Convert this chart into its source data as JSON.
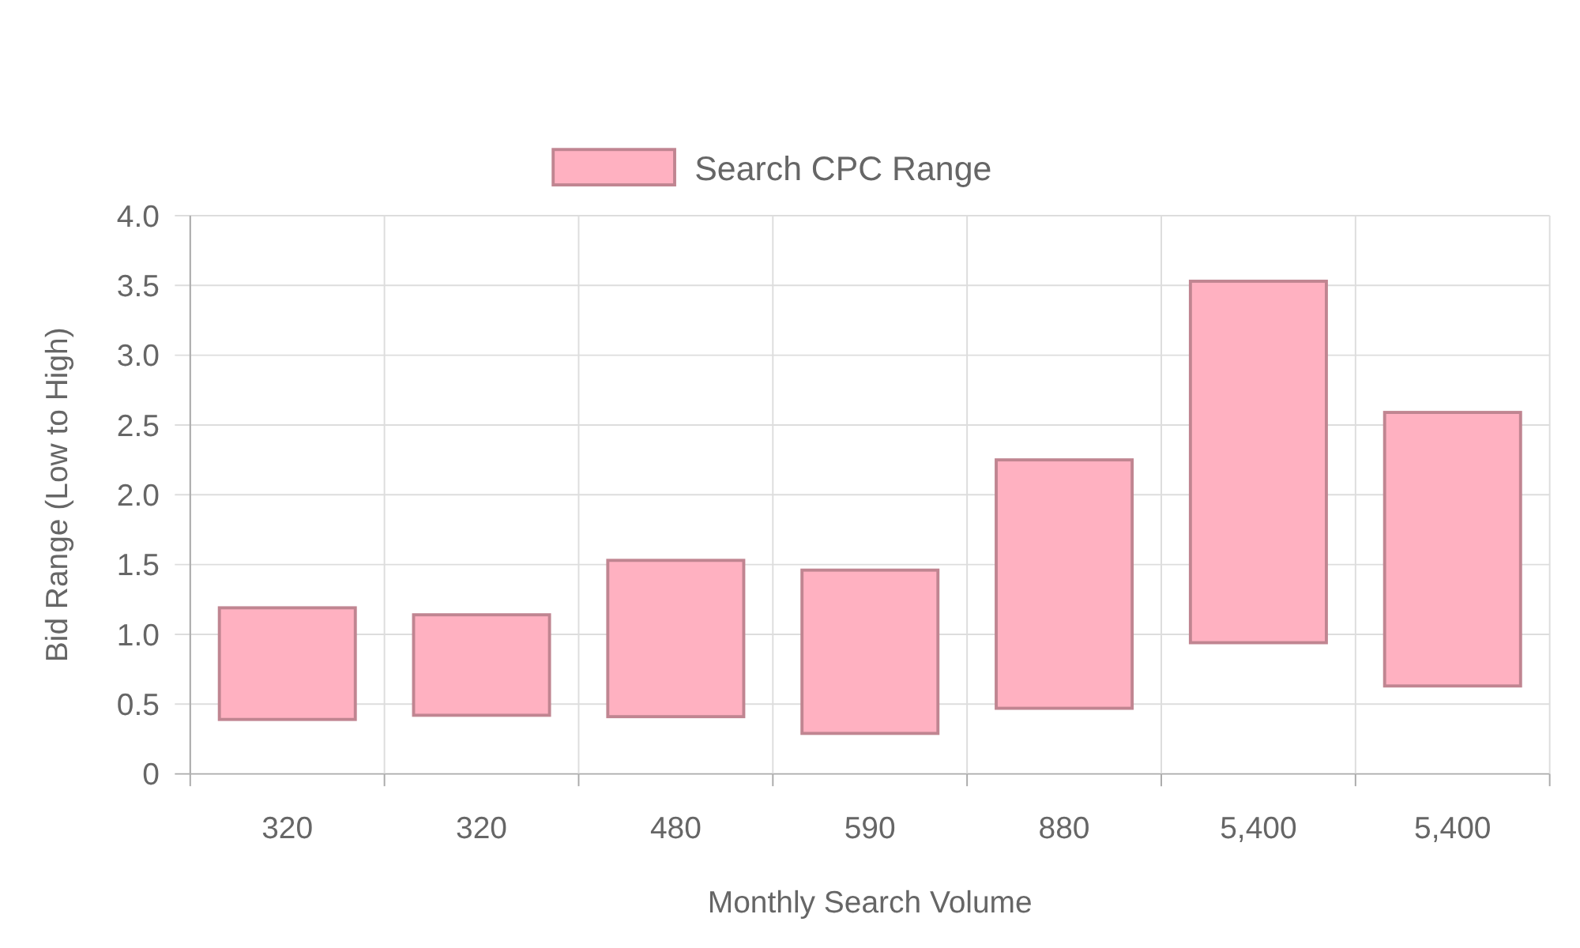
{
  "chart_data": {
    "type": "bar",
    "xlabel": "Monthly Search Volume",
    "ylabel": "Bid Range (Low to High)",
    "categories": [
      "320",
      "320",
      "480",
      "590",
      "880",
      "5,400",
      "5,400"
    ],
    "series": [
      {
        "name": "Search CPC Range",
        "color": "#ffb1c1",
        "values": [
          0.8,
          0.72,
          1.12,
          1.17,
          1.78,
          2.59,
          1.96
        ],
        "base": [
          0.39,
          0.42,
          0.41,
          0.29,
          0.47,
          0.94,
          0.63
        ]
      }
    ],
    "ylim": [
      0,
      4
    ],
    "yticks": [
      0,
      {
        "value": 0.5,
        "label": "0.5"
      },
      {
        "value": 1,
        "label": "1.0"
      },
      {
        "value": 1.5,
        "label": "1.5"
      },
      {
        "value": 2,
        "label": "2.0"
      },
      {
        "value": 2.5,
        "label": "2.5"
      },
      {
        "value": 3,
        "label": "3.0"
      },
      {
        "value": 3.5,
        "label": "3.5"
      },
      {
        "value": 4,
        "label": "4.0"
      }
    ],
    "grid": true,
    "legend": "top"
  }
}
